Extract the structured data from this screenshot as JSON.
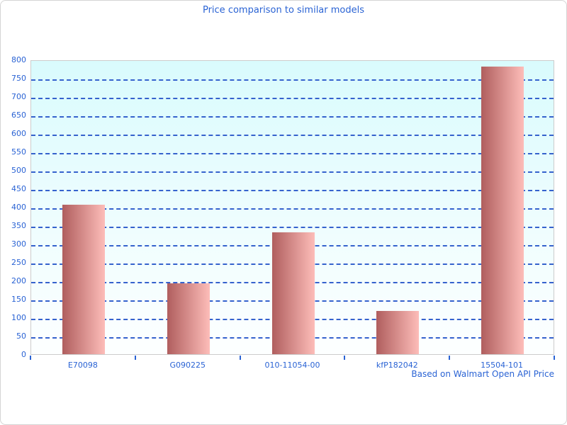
{
  "title": "Price comparison to similar models",
  "footer": "Based on Walmart Open API Price",
  "colors": {
    "text_blue": "#2a63d4",
    "grid_blue": "#3562cd",
    "bar_gradient_left": "#b05e5e",
    "bar_gradient_right": "#fdbdb9",
    "plot_bg_top": "#d9fbfd",
    "plot_bg_bottom": "#fdffff",
    "axis_gray": "#cccccc"
  },
  "chart_data": {
    "type": "bar",
    "title": "Price comparison to similar models",
    "categories": [
      "E70098",
      "G090225",
      "010-11054-00",
      "kfP182042",
      "15504-101"
    ],
    "values": [
      405,
      193,
      331,
      118,
      781
    ],
    "xlabel": "",
    "ylabel": "",
    "ylim": [
      0,
      800
    ],
    "ytick_step": 50,
    "ytick_labels": [
      "0",
      "50",
      "100",
      "150",
      "200",
      "250",
      "300",
      "350",
      "400",
      "450",
      "500",
      "550",
      "600",
      "650",
      "700",
      "750",
      "800"
    ],
    "grid": "horizontal-dashed",
    "legend": "none",
    "annotation": "Based on Walmart Open API Price"
  }
}
